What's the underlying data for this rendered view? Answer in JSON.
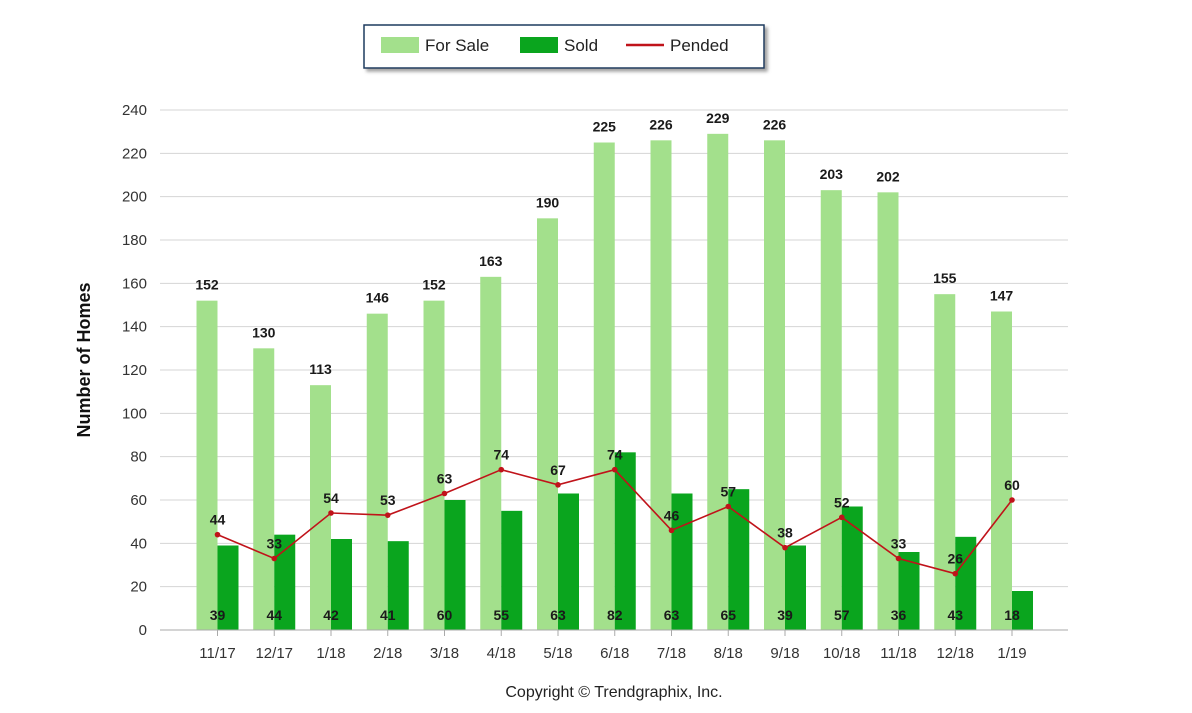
{
  "legend": {
    "for_sale": "For Sale",
    "sold": "Sold",
    "pended": "Pended"
  },
  "copyright": "Copyright © Trendgraphix, Inc.",
  "colors": {
    "for_sale": "#a3e08c",
    "sold": "#0aa51e",
    "pended": "#c0131a",
    "grid": "#d4d4d4",
    "axis": "#aaaaaa"
  },
  "chart_data": {
    "type": "bar",
    "title": "",
    "xlabel": "",
    "ylabel": "Number of Homes",
    "ylim": [
      0,
      240
    ],
    "yticks": [
      0,
      20,
      40,
      60,
      80,
      100,
      120,
      140,
      160,
      180,
      200,
      220,
      240
    ],
    "grid": true,
    "legend_position": "top-center",
    "categories": [
      "11/17",
      "12/17",
      "1/18",
      "2/18",
      "3/18",
      "4/18",
      "5/18",
      "6/18",
      "7/18",
      "8/18",
      "9/18",
      "10/18",
      "11/18",
      "12/18",
      "1/19"
    ],
    "series": [
      {
        "name": "For Sale",
        "type": "bar",
        "values": [
          152,
          130,
          113,
          146,
          152,
          163,
          190,
          225,
          226,
          229,
          226,
          203,
          202,
          155,
          147
        ]
      },
      {
        "name": "Sold",
        "type": "bar",
        "values": [
          39,
          44,
          42,
          41,
          60,
          55,
          63,
          82,
          63,
          65,
          39,
          57,
          36,
          43,
          18
        ]
      },
      {
        "name": "Pended",
        "type": "line",
        "values": [
          44,
          33,
          54,
          53,
          63,
          74,
          67,
          74,
          46,
          57,
          38,
          52,
          33,
          26,
          60
        ]
      }
    ]
  }
}
